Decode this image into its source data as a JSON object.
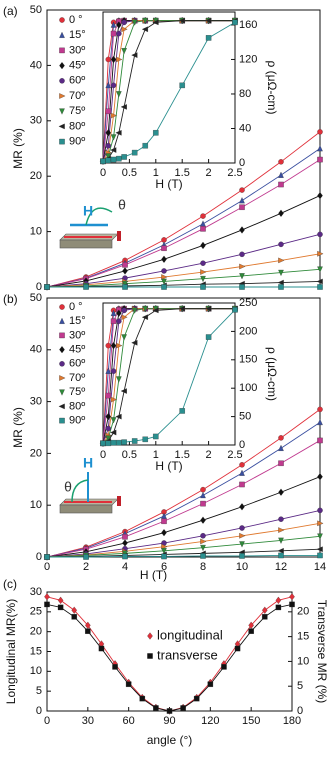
{
  "chart_data": [
    {
      "type": "line",
      "label": "(a)",
      "ylabel": "MR (%)",
      "legend": "upper left",
      "annotations": [
        "H",
        "θ"
      ],
      "x": [
        0,
        2,
        4,
        6,
        8,
        10,
        12,
        14
      ],
      "xlim": [
        0,
        14
      ],
      "ylim": [
        0,
        50
      ],
      "yticks": [
        0,
        10,
        20,
        30,
        40,
        50
      ],
      "series": [
        {
          "name": "0 °",
          "color": "#e0303a",
          "marker": "circle",
          "values": [
            0,
            1.8,
            4.8,
            8.5,
            12.8,
            17.5,
            22.6,
            28
          ]
        },
        {
          "name": "15°",
          "color": "#3a4fa0",
          "marker": "triangle-up",
          "values": [
            0,
            1.6,
            4.3,
            7.6,
            11.4,
            15.6,
            20.2,
            25
          ]
        },
        {
          "name": "30º",
          "color": "#c03a8f",
          "marker": "square",
          "values": [
            0,
            1.5,
            4.0,
            7.0,
            10.5,
            14.4,
            18.5,
            23
          ]
        },
        {
          "name": "45º",
          "color": "#111111",
          "marker": "diamond",
          "values": [
            0,
            1.1,
            2.9,
            5.0,
            7.5,
            10.3,
            13.3,
            16.5
          ]
        },
        {
          "name": "60º",
          "color": "#5b2a86",
          "marker": "circle",
          "values": [
            0,
            0.6,
            1.6,
            2.9,
            4.3,
            5.9,
            7.7,
            9.5
          ]
        },
        {
          "name": "70º",
          "color": "#e07a30",
          "marker": "triangle-right",
          "values": [
            0,
            0.4,
            1.0,
            1.8,
            2.7,
            3.7,
            4.8,
            6
          ]
        },
        {
          "name": "75º",
          "color": "#2f8a3a",
          "marker": "triangle-down",
          "values": [
            0,
            0.2,
            0.6,
            1.0,
            1.5,
            2.0,
            2.6,
            3.2
          ]
        },
        {
          "name": "80º",
          "color": "#222222",
          "marker": "triangle-left",
          "values": [
            0,
            0.1,
            0.2,
            0.3,
            0.5,
            0.6,
            0.8,
            1
          ]
        },
        {
          "name": "90º",
          "color": "#2a8f8f",
          "marker": "square",
          "values": [
            0,
            0,
            0,
            0,
            0,
            0,
            0,
            0
          ]
        }
      ]
    },
    {
      "type": "line",
      "xlabel": "H (T)",
      "ylabel": "ρ (μΩ-cm)",
      "x": [
        0,
        0.1,
        0.2,
        0.3,
        0.4,
        0.6,
        0.8,
        1,
        1.5,
        2,
        2.5
      ],
      "xlim": [
        0,
        2.5
      ],
      "xticks": [
        0,
        0.5,
        1,
        1.5,
        2,
        2.5
      ],
      "ylim": [
        0,
        175
      ],
      "yticks": [
        0,
        40,
        80,
        120,
        160
      ],
      "series": [
        {
          "color": "#e0303a",
          "marker": "circle",
          "values": [
            2,
            120,
            163,
            165,
            165,
            165,
            165,
            165,
            165,
            165,
            165
          ]
        },
        {
          "color": "#3a4fa0",
          "marker": "triangle-up",
          "values": [
            2,
            90,
            160,
            165,
            165,
            165,
            165,
            165,
            165,
            165,
            165
          ]
        },
        {
          "color": "#c03a8f",
          "marker": "square",
          "values": [
            2,
            60,
            150,
            164,
            165,
            165,
            165,
            165,
            165,
            165,
            165
          ]
        },
        {
          "color": "#111111",
          "marker": "diamond",
          "values": [
            2,
            35,
            120,
            160,
            165,
            165,
            165,
            165,
            165,
            165,
            165
          ]
        },
        {
          "color": "#5b2a86",
          "marker": "circle",
          "values": [
            2,
            20,
            90,
            150,
            163,
            165,
            165,
            165,
            165,
            165,
            165
          ]
        },
        {
          "color": "#e07a30",
          "marker": "triangle-right",
          "values": [
            2,
            12,
            55,
            120,
            155,
            165,
            165,
            165,
            165,
            165,
            165
          ]
        },
        {
          "color": "#2f8a3a",
          "marker": "triangle-down",
          "values": [
            2,
            8,
            30,
            80,
            130,
            163,
            165,
            165,
            165,
            165,
            165
          ]
        },
        {
          "color": "#222222",
          "marker": "triangle-left",
          "values": [
            2,
            5,
            15,
            35,
            65,
            125,
            155,
            163,
            165,
            165,
            165
          ]
        },
        {
          "color": "#2a8f8f",
          "marker": "square",
          "values": [
            2,
            3,
            4,
            5,
            7,
            12,
            20,
            35,
            90,
            145,
            163
          ]
        }
      ]
    },
    {
      "type": "line",
      "label": "(b)",
      "ylabel": "MR (%)",
      "xlabel": "H (T)",
      "legend": "upper left",
      "annotations": [
        "H",
        "θ"
      ],
      "x": [
        0,
        2,
        4,
        6,
        8,
        10,
        12,
        14
      ],
      "xlim": [
        0,
        14
      ],
      "xticks": [
        0,
        2,
        4,
        6,
        8,
        10,
        12,
        14
      ],
      "ylim": [
        0,
        50
      ],
      "yticks": [
        0,
        10,
        20,
        30,
        40,
        50
      ],
      "series": [
        {
          "name": "0 °",
          "color": "#e0303a",
          "marker": "circle",
          "values": [
            0,
            1.9,
            4.9,
            8.7,
            13.0,
            17.8,
            23.0,
            28.5
          ]
        },
        {
          "name": "15°",
          "color": "#3a4fa0",
          "marker": "triangle-up",
          "values": [
            0,
            1.7,
            4.5,
            7.9,
            11.9,
            16.2,
            21.0,
            26
          ]
        },
        {
          "name": "30º",
          "color": "#c03a8f",
          "marker": "square",
          "values": [
            0,
            1.5,
            3.9,
            6.9,
            10.3,
            14.0,
            18.1,
            22.5
          ]
        },
        {
          "name": "45º",
          "color": "#111111",
          "marker": "diamond",
          "values": [
            0,
            1.0,
            2.7,
            4.7,
            7.1,
            9.7,
            12.5,
            15.5
          ]
        },
        {
          "name": "60º",
          "color": "#5b2a86",
          "marker": "circle",
          "values": [
            0,
            0.6,
            1.6,
            2.7,
            4.1,
            5.6,
            7.3,
            9
          ]
        },
        {
          "name": "70º",
          "color": "#e07a30",
          "marker": "triangle-right",
          "values": [
            0,
            0.4,
            1.1,
            2.0,
            3.0,
            4.1,
            5.2,
            6.5
          ]
        },
        {
          "name": "75º",
          "color": "#2f8a3a",
          "marker": "triangle-down",
          "values": [
            0,
            0.3,
            0.7,
            1.2,
            1.8,
            2.5,
            3.2,
            4
          ]
        },
        {
          "name": "80º",
          "color": "#222222",
          "marker": "triangle-left",
          "values": [
            0,
            0.1,
            0.3,
            0.5,
            0.7,
            0.9,
            1.2,
            1.5
          ]
        },
        {
          "name": "90º",
          "color": "#2a8f8f",
          "marker": "square",
          "values": [
            0,
            0,
            0.1,
            0.1,
            0.2,
            0.2,
            0.3,
            0.3
          ]
        }
      ]
    },
    {
      "type": "line",
      "xlabel": "H (T)",
      "ylabel": "ρ (μΩ-cm)",
      "x": [
        0,
        0.1,
        0.2,
        0.3,
        0.4,
        0.6,
        0.8,
        1,
        1.5,
        2,
        2.5
      ],
      "xlim": [
        0,
        2.5
      ],
      "xticks": [
        0,
        0.5,
        1,
        1.5,
        2,
        2.5
      ],
      "ylim": [
        0,
        250
      ],
      "yticks": [
        0,
        50,
        100,
        150,
        200,
        250
      ],
      "series": [
        {
          "color": "#e0303a",
          "marker": "circle",
          "values": [
            3,
            175,
            237,
            240,
            240,
            240,
            240,
            240,
            240,
            240,
            240
          ]
        },
        {
          "color": "#3a4fa0",
          "marker": "triangle-up",
          "values": [
            3,
            130,
            232,
            240,
            240,
            240,
            240,
            240,
            240,
            240,
            240
          ]
        },
        {
          "color": "#c03a8f",
          "marker": "square",
          "values": [
            3,
            87,
            218,
            238,
            240,
            240,
            240,
            240,
            240,
            240,
            240
          ]
        },
        {
          "color": "#111111",
          "marker": "diamond",
          "values": [
            3,
            50,
            175,
            232,
            240,
            240,
            240,
            240,
            240,
            240,
            240
          ]
        },
        {
          "color": "#5b2a86",
          "marker": "circle",
          "values": [
            3,
            29,
            130,
            218,
            237,
            240,
            240,
            240,
            240,
            240,
            240
          ]
        },
        {
          "color": "#e07a30",
          "marker": "triangle-right",
          "values": [
            3,
            17,
            80,
            175,
            225,
            240,
            240,
            240,
            240,
            240,
            240
          ]
        },
        {
          "color": "#2f8a3a",
          "marker": "triangle-down",
          "values": [
            3,
            12,
            44,
            116,
            190,
            237,
            240,
            240,
            240,
            240,
            240
          ]
        },
        {
          "color": "#222222",
          "marker": "triangle-left",
          "values": [
            3,
            7,
            22,
            50,
            95,
            180,
            225,
            237,
            240,
            240,
            240
          ]
        },
        {
          "color": "#2a8f8f",
          "marker": "square",
          "values": [
            3,
            3,
            4,
            4,
            5,
            7,
            10,
            15,
            60,
            190,
            238
          ]
        }
      ]
    },
    {
      "type": "line",
      "label": "(c)",
      "xlabel": "angle (°)",
      "ylabel": "Longitudinal MR(%)",
      "y2label": "Transverse MR (%)",
      "legend": "upper center",
      "x": [
        0,
        10,
        20,
        30,
        40,
        50,
        60,
        70,
        80,
        90,
        100,
        110,
        120,
        130,
        140,
        150,
        160,
        170,
        180
      ],
      "xlim": [
        0,
        180
      ],
      "xticks": [
        0,
        30,
        60,
        90,
        120,
        150,
        180
      ],
      "ylim": [
        0,
        30
      ],
      "yticks": [
        0,
        5,
        10,
        15,
        20,
        25,
        30
      ],
      "y2lim": [
        0,
        24
      ],
      "y2ticks": [
        0,
        5,
        10,
        15,
        20
      ],
      "series": [
        {
          "name": "longitudinal",
          "color": "#e0303a",
          "marker": "diamond",
          "values": [
            28.8,
            27.9,
            25.4,
            21.6,
            16.9,
            11.9,
            7.2,
            3.4,
            0.9,
            0,
            0.9,
            3.4,
            7.2,
            11.9,
            16.9,
            21.6,
            25.4,
            27.9,
            28.8
          ]
        },
        {
          "name": "transverse",
          "color": "#111111",
          "marker": "square",
          "axis": "y2",
          "values": [
            21.5,
            20.9,
            19.0,
            16.1,
            12.6,
            8.9,
            5.4,
            2.5,
            0.6,
            0,
            0.6,
            2.5,
            5.4,
            8.9,
            12.6,
            16.1,
            19.0,
            20.9,
            21.5
          ]
        }
      ]
    }
  ]
}
